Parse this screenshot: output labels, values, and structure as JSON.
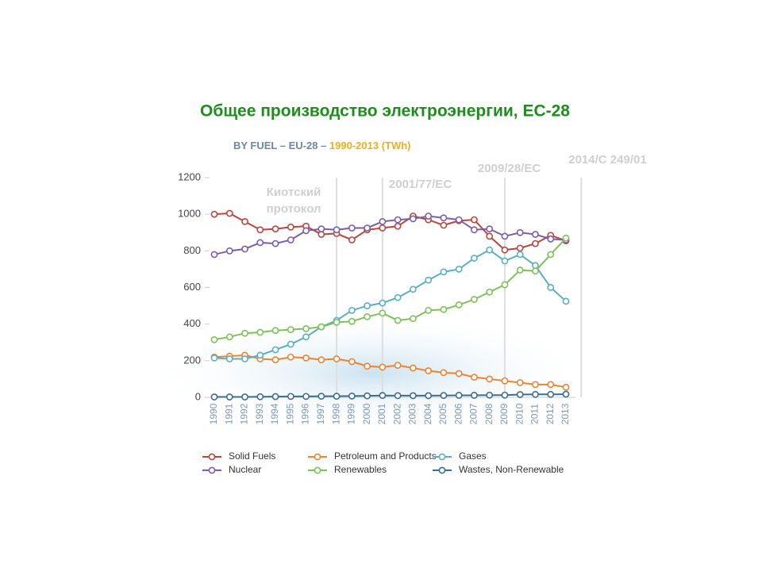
{
  "chart_data": {
    "type": "line",
    "title": "Общее производство электроэнергии, ЕС-28",
    "subtitle_prefix": "BY FUEL – EU-28 –",
    "subtitle_period": "1990-2013 (TWh)",
    "x": [
      1990,
      1991,
      1992,
      1993,
      1994,
      1995,
      1996,
      1997,
      1998,
      1999,
      2000,
      2001,
      2002,
      2003,
      2004,
      2005,
      2006,
      2007,
      2008,
      2009,
      2010,
      2011,
      2012,
      2013
    ],
    "xlim": [
      1990,
      2013
    ],
    "ylim": [
      0,
      1200
    ],
    "yticks": [
      0,
      200,
      400,
      600,
      800,
      1000,
      1200
    ],
    "annotations": [
      {
        "x": 1998,
        "lines": [
          "Киотский",
          "протокол"
        ]
      },
      {
        "x": 2001,
        "lines": [
          "2001/77/EC"
        ]
      },
      {
        "x": 2009,
        "lines": [
          "2009/28/EC"
        ]
      },
      {
        "x": 2014,
        "lines": [
          "2014/C 249/01"
        ]
      }
    ],
    "series": [
      {
        "name": "Solid Fuels",
        "color": "#b5473f",
        "values": [
          1000,
          1005,
          960,
          915,
          920,
          930,
          935,
          890,
          895,
          860,
          915,
          925,
          935,
          990,
          970,
          940,
          965,
          970,
          880,
          805,
          815,
          840,
          885,
          855
        ]
      },
      {
        "name": "Petroleum and Products",
        "color": "#ea8432",
        "values": [
          220,
          225,
          230,
          210,
          205,
          220,
          215,
          205,
          210,
          195,
          170,
          165,
          175,
          160,
          145,
          135,
          130,
          110,
          100,
          90,
          80,
          70,
          70,
          55
        ]
      },
      {
        "name": "Gases",
        "color": "#5aaec4",
        "values": [
          215,
          210,
          210,
          230,
          260,
          290,
          330,
          385,
          420,
          475,
          500,
          515,
          545,
          590,
          640,
          685,
          700,
          760,
          805,
          745,
          780,
          720,
          600,
          525
        ]
      },
      {
        "name": "Nuclear",
        "color": "#7a5ea8",
        "values": [
          780,
          800,
          810,
          845,
          840,
          860,
          910,
          920,
          915,
          925,
          925,
          960,
          970,
          975,
          990,
          980,
          970,
          915,
          920,
          880,
          900,
          890,
          865,
          860
        ]
      },
      {
        "name": "Renewables",
        "color": "#7dc15a",
        "values": [
          315,
          330,
          350,
          355,
          365,
          370,
          375,
          385,
          410,
          415,
          440,
          460,
          420,
          430,
          475,
          480,
          505,
          535,
          575,
          615,
          695,
          690,
          780,
          870
        ]
      },
      {
        "name": "Wastes, Non-Renewable",
        "color": "#3f6d8c",
        "values": [
          2,
          2,
          2,
          3,
          4,
          5,
          5,
          6,
          6,
          7,
          8,
          10,
          9,
          9,
          9,
          10,
          11,
          11,
          12,
          12,
          15,
          16,
          16,
          17
        ]
      }
    ]
  }
}
